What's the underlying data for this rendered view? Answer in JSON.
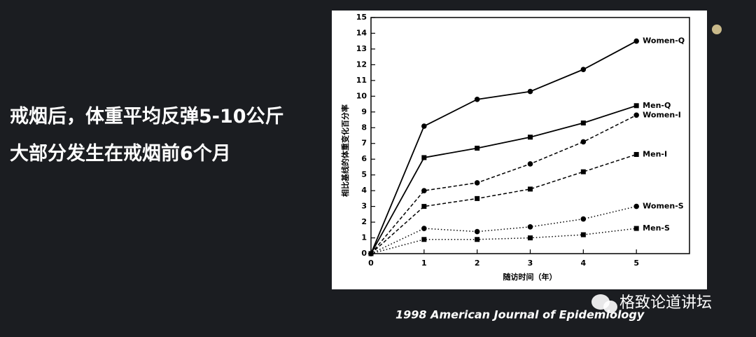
{
  "slide": {
    "lines": [
      "戒烟后，体重平均反弹5-10公斤",
      "大部分发生在戒烟前6个月"
    ],
    "citation": "1998 American Journal  of Epidemiology",
    "watermark": "格致论道讲坛"
  },
  "chart_data": {
    "type": "line",
    "x_label": "随访时间（年）",
    "y_label": "相比基线的体重变化百分率",
    "x": [
      0,
      1,
      2,
      3,
      4,
      5
    ],
    "xlim": [
      0,
      6
    ],
    "xticks": [
      0,
      1,
      2,
      3,
      4,
      5
    ],
    "ylim": [
      0,
      15
    ],
    "yticks": [
      0,
      1,
      2,
      3,
      4,
      5,
      6,
      7,
      8,
      9,
      10,
      11,
      12,
      13,
      14,
      15
    ],
    "series": [
      {
        "name": "Women-Q",
        "color": "#000000",
        "marker": "circle",
        "dash": "solid",
        "values": [
          0,
          8.1,
          9.8,
          10.3,
          11.7,
          13.5
        ]
      },
      {
        "name": "Men-Q",
        "color": "#000000",
        "marker": "square",
        "dash": "solid",
        "values": [
          0,
          6.1,
          6.7,
          7.4,
          8.3,
          9.4
        ]
      },
      {
        "name": "Women-I",
        "color": "#000000",
        "marker": "circle",
        "dash": "dashed",
        "values": [
          0,
          4.0,
          4.5,
          5.7,
          7.1,
          8.8
        ]
      },
      {
        "name": "Men-I",
        "color": "#000000",
        "marker": "square",
        "dash": "dashed",
        "values": [
          0,
          3.0,
          3.5,
          4.1,
          5.2,
          6.3
        ]
      },
      {
        "name": "Women-S",
        "color": "#000000",
        "marker": "circle",
        "dash": "dotted",
        "values": [
          0,
          1.6,
          1.4,
          1.7,
          2.2,
          3.0
        ]
      },
      {
        "name": "Men-S",
        "color": "#000000",
        "marker": "square",
        "dash": "dotted",
        "values": [
          0,
          0.9,
          0.9,
          1.0,
          1.2,
          1.6
        ]
      }
    ]
  }
}
